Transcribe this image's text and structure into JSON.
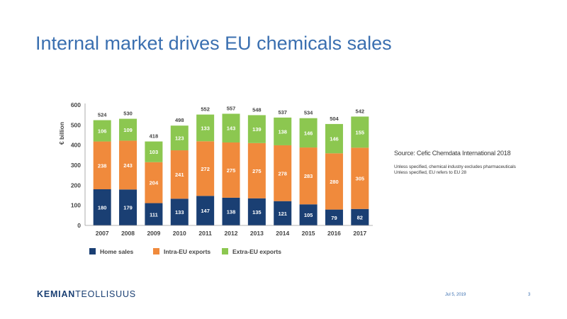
{
  "title": "Internal market drives EU chemicals sales",
  "source": {
    "main": "Source: Cefic Chemdata International 2018",
    "note1": "Unless specified, chemical industry excludes pharmaceuticals",
    "note2": "Unless specified, EU refers to EU 28"
  },
  "footer": {
    "logo_bold": "KEMIAN",
    "logo_light": "TEOLLISUUS",
    "date": "Jul 5, 2019",
    "page": "3"
  },
  "colors": {
    "home": "#1a3f73",
    "intra": "#f08a3c",
    "extra": "#8cc750",
    "title": "#3a6fb0"
  },
  "chart_data": {
    "type": "bar",
    "stacked": true,
    "ylabel": "€ billion",
    "ylim": [
      0,
      600
    ],
    "yticks": [
      0,
      100,
      200,
      300,
      400,
      500,
      600
    ],
    "categories": [
      "2007",
      "2008",
      "2009",
      "2010",
      "2011",
      "2012",
      "2013",
      "2014",
      "2015",
      "2016",
      "2017"
    ],
    "totals": [
      524,
      530,
      418,
      498,
      552,
      557,
      548,
      537,
      534,
      504,
      542
    ],
    "series": [
      {
        "name": "Home sales",
        "values": [
          180,
          179,
          111,
          133,
          147,
          138,
          135,
          121,
          105,
          79,
          82
        ]
      },
      {
        "name": "Intra-EU exports",
        "values": [
          238,
          243,
          204,
          241,
          272,
          275,
          275,
          278,
          283,
          280,
          305
        ]
      },
      {
        "name": "Extra-EU exports",
        "values": [
          106,
          109,
          103,
          123,
          133,
          143,
          139,
          138,
          146,
          146,
          155
        ]
      }
    ],
    "legend_position": "bottom",
    "grid": false
  }
}
